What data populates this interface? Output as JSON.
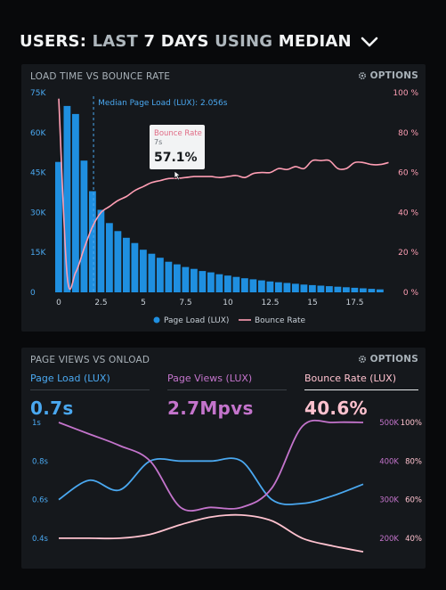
{
  "header": {
    "users": "USERS:",
    "last": "LAST",
    "days": "7 DAYS",
    "using": "USING",
    "median": "MEDIAN"
  },
  "panel1": {
    "title": "LOAD TIME VS BOUNCE RATE",
    "options": "OPTIONS",
    "median_label": "Median Page Load (LUX): 2.056s",
    "tooltip": {
      "title": "Bounce Rate",
      "x": "7s",
      "value": "57.1%"
    },
    "legend": {
      "bars": "Page Load (LUX)",
      "line": "Bounce Rate"
    },
    "colors": {
      "bars": "#1f8fe0",
      "line": "#ff9eb4"
    }
  },
  "panel2": {
    "title": "PAGE VIEWS VS ONLOAD",
    "options": "OPTIONS",
    "metrics": [
      {
        "label": "Page Load (LUX)",
        "value": "0.7s",
        "color": "#4aa8f0"
      },
      {
        "label": "Page Views (LUX)",
        "value": "2.7Mpvs",
        "color": "#c474cc"
      },
      {
        "label": "Bounce Rate (LUX)",
        "value": "40.6%",
        "color": "#ffc2cf"
      }
    ]
  },
  "chart_data": [
    {
      "type": "bar",
      "title": "LOAD TIME VS BOUNCE RATE",
      "x_ticks": [
        "0",
        "2.5",
        "5",
        "7.5",
        "10",
        "12.5",
        "15",
        "17.5"
      ],
      "y_left_ticks": [
        "0",
        "15K",
        "30K",
        "45K",
        "60K",
        "75K"
      ],
      "y_right_ticks": [
        "0 %",
        "20 %",
        "40 %",
        "60 %",
        "80 %",
        "100 %"
      ],
      "ylim_left": [
        0,
        75000
      ],
      "ylim_right": [
        0,
        100
      ],
      "series": [
        {
          "name": "Page Load (LUX)",
          "x": [
            0,
            0.5,
            1,
            1.5,
            2,
            2.5,
            3,
            3.5,
            4,
            4.5,
            5,
            5.5,
            6,
            6.5,
            7,
            7.5,
            8,
            8.5,
            9,
            9.5,
            10,
            10.5,
            11,
            11.5,
            12,
            12.5,
            13,
            13.5,
            14,
            14.5,
            15,
            15.5,
            16,
            16.5,
            17,
            17.5,
            18,
            18.5,
            19
          ],
          "values": [
            49000,
            70000,
            67000,
            49500,
            38000,
            31000,
            26000,
            23000,
            20500,
            18500,
            16000,
            14500,
            13000,
            11500,
            10500,
            9500,
            8800,
            8000,
            7500,
            6800,
            6300,
            5800,
            5300,
            4900,
            4500,
            4100,
            3800,
            3500,
            3200,
            2900,
            2700,
            2500,
            2300,
            2100,
            1900,
            1700,
            1500,
            1300,
            1100
          ]
        },
        {
          "name": "Bounce Rate",
          "x": [
            0,
            0.5,
            1,
            1.5,
            2,
            2.5,
            3,
            3.5,
            4,
            4.5,
            5,
            5.5,
            6,
            6.5,
            7,
            7.5,
            8,
            8.5,
            9,
            9.5,
            10,
            10.5,
            11,
            11.5,
            12,
            12.5,
            13,
            13.5,
            14,
            14.5,
            15,
            15.5,
            16,
            16.5,
            17,
            17.5,
            18,
            18.5,
            19,
            19.5
          ],
          "values": [
            97,
            8,
            10,
            22,
            33,
            40,
            43,
            46,
            48,
            51,
            53,
            55,
            56,
            57,
            57.1,
            57.5,
            58,
            58,
            58,
            57.5,
            58,
            58.5,
            57.5,
            59.5,
            60,
            60,
            62,
            61.5,
            63,
            62,
            66,
            66,
            66,
            62,
            62,
            65,
            65,
            64,
            64,
            65
          ]
        }
      ],
      "annotations": [
        "Median Page Load (LUX): 2.056s"
      ],
      "legend": "bottom"
    },
    {
      "type": "line",
      "title": "PAGE VIEWS VS ONLOAD",
      "y_left_ticks": [
        "0.4s",
        "0.6s",
        "0.8s",
        "1s"
      ],
      "y_right_ticks_views": [
        "200K",
        "300K",
        "400K",
        "500K"
      ],
      "y_right_ticks_bounce": [
        "40%",
        "60%",
        "80%",
        "100%"
      ],
      "series": [
        {
          "name": "Page Load (LUX)",
          "x": [
            0,
            1,
            2,
            3,
            4,
            5,
            6,
            7,
            8,
            9,
            10
          ],
          "values": [
            0.6,
            0.7,
            0.65,
            0.8,
            0.8,
            0.8,
            0.8,
            0.6,
            0.58,
            0.62,
            0.68
          ]
        },
        {
          "name": "Page Views (LUX)",
          "x": [
            0,
            1,
            2,
            3,
            4,
            5,
            6,
            7,
            8,
            9,
            10
          ],
          "values": [
            500,
            470,
            440,
            400,
            280,
            280,
            280,
            330,
            490,
            500,
            500
          ]
        },
        {
          "name": "Bounce Rate (LUX)",
          "x": [
            0,
            1,
            2,
            3,
            4,
            5,
            6,
            7,
            8,
            9,
            10
          ],
          "values": [
            40,
            40,
            40,
            42,
            47,
            51,
            52,
            49,
            40,
            36,
            33
          ]
        }
      ]
    }
  ]
}
